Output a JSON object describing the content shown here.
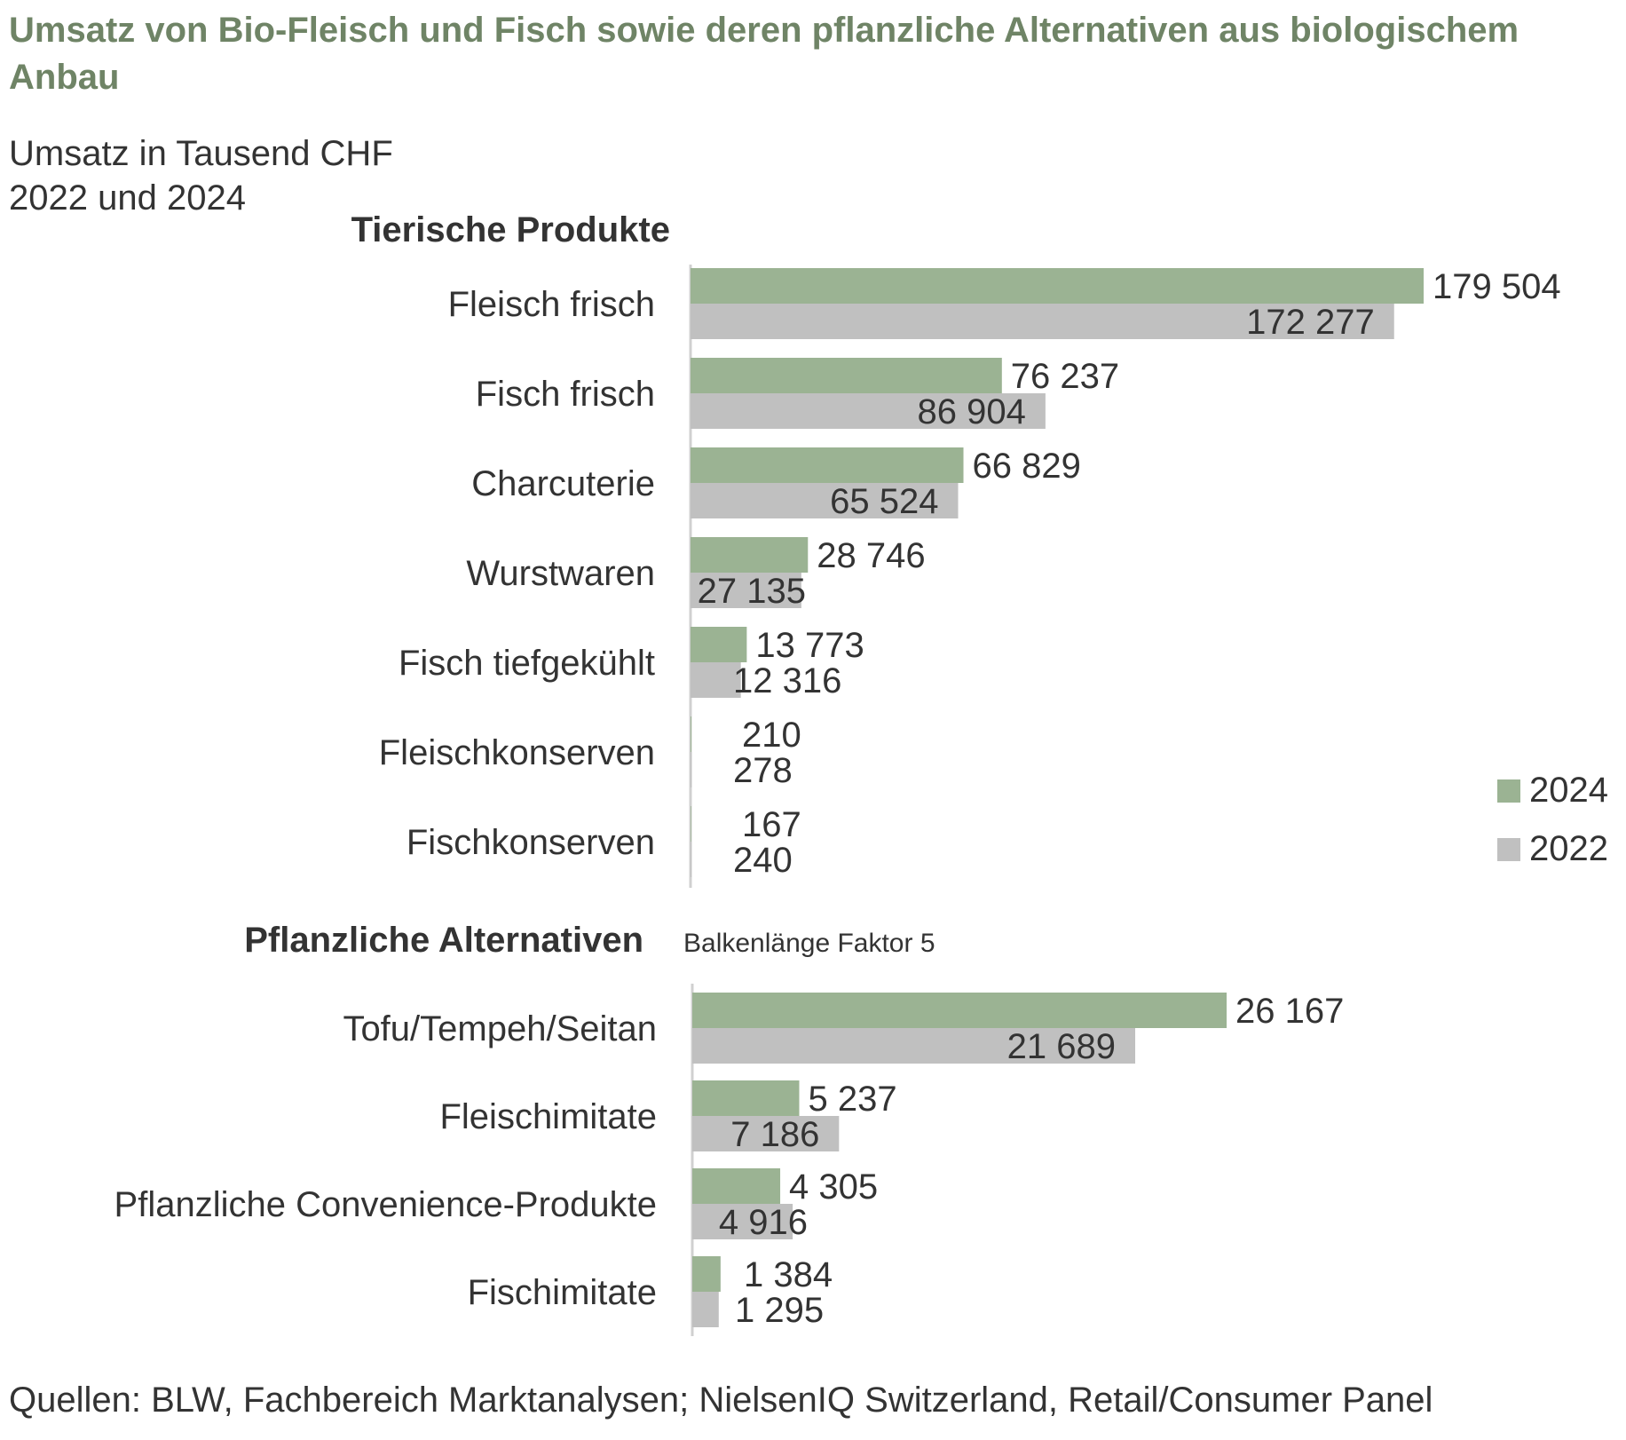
{
  "title": "Umsatz von Bio-Fleisch und Fisch sowie deren pflanzliche Alternativen aus biologischem Anbau",
  "subtitle_line1": "Umsatz in Tausend CHF",
  "subtitle_line2": "2022 und 2024",
  "footer": "Quellen: BLW, Fachbereich Marktanalysen; NielsenIQ Switzerland, Retail/Consumer Panel",
  "colors": {
    "series_2024": "#9bb393",
    "series_2022": "#c0c0c0",
    "title": "#6f8466"
  },
  "legend": [
    {
      "label": "2024",
      "color": "#9bb393"
    },
    {
      "label": "2022",
      "color": "#c0c0c0"
    }
  ],
  "chart_data": [
    {
      "type": "bar",
      "orientation": "horizontal",
      "title": "Tierische Produkte",
      "categories": [
        "Fleisch frisch",
        "Fisch frisch",
        "Charcuterie",
        "Wurstwaren",
        "Fisch tiefgekühlt",
        "Fleischkonserven",
        "Fischkonserven"
      ],
      "series": [
        {
          "name": "2024",
          "values": [
            179504,
            76237,
            66829,
            28746,
            13773,
            210,
            167
          ],
          "labels": [
            "179 504",
            "76 237",
            "66 829",
            "28 746",
            "13 773",
            "210",
            "167"
          ]
        },
        {
          "name": "2022",
          "values": [
            172277,
            86904,
            65524,
            27135,
            12316,
            278,
            240
          ],
          "labels": [
            "172 277",
            "86 904",
            "65 524",
            "27 135",
            "12 316",
            "278",
            "240"
          ]
        }
      ],
      "note": ""
    },
    {
      "type": "bar",
      "orientation": "horizontal",
      "title": "Pflanzliche Alternativen",
      "categories": [
        "Tofu/Tempeh/Seitan",
        "Fleischimitate",
        "Pflanzliche Convenience-Produkte",
        "Fischimitate"
      ],
      "series": [
        {
          "name": "2024",
          "values": [
            26167,
            5237,
            4305,
            1384
          ],
          "labels": [
            "26 167",
            "5 237",
            "4 305",
            "1 384"
          ]
        },
        {
          "name": "2022",
          "values": [
            21689,
            7186,
            4916,
            1295
          ],
          "labels": [
            "21 689",
            "7 186",
            "4 916",
            "1 295"
          ]
        }
      ],
      "note": "Balkenlänge Faktor 5",
      "bar_length_factor": 5
    }
  ]
}
